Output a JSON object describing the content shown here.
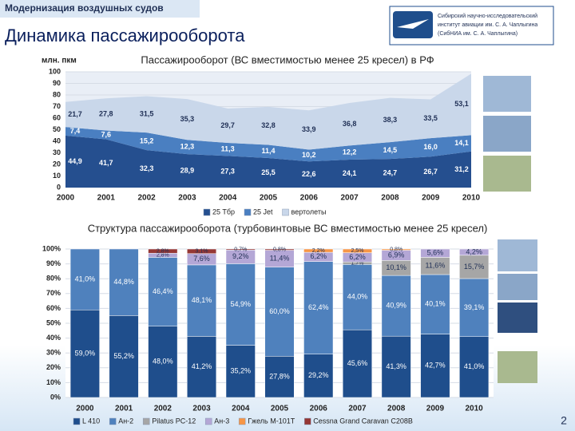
{
  "header": {
    "section": "Модернизация воздушных судов",
    "title": "Динамика пассажирооборота",
    "logo_text": [
      "Сибирский научно-исследовательский",
      "институт авиации им. С. А. Чаплыгина",
      "(СибНИА им. С. А. Чаплыгина)"
    ]
  },
  "page_number": "2",
  "chart_data": [
    {
      "type": "area",
      "title": "Пассажирооборот (ВС вместимостью менее 25 кресел) в РФ",
      "y_label": "млн. пкм",
      "categories": [
        "2000",
        "2001",
        "2002",
        "2003",
        "2004",
        "2005",
        "2006",
        "2007",
        "2008",
        "2009",
        "2010"
      ],
      "ylim": [
        0,
        100
      ],
      "yticks": [
        0,
        10,
        20,
        30,
        40,
        50,
        60,
        70,
        80,
        90,
        100
      ],
      "grid": true,
      "series": [
        {
          "name": "25 Tбр",
          "color": "#254f8f",
          "values": [
            44.9,
            41.7,
            32.3,
            28.9,
            27.3,
            25.5,
            22.6,
            24.1,
            24.7,
            26.7,
            31.2
          ],
          "value_labels": [
            "44,9",
            "41,7",
            "32,3",
            "28,9",
            "27,3",
            "25,5",
            "22,6",
            "24,1",
            "24,7",
            "26,7",
            "31,2"
          ]
        },
        {
          "name": "25 Jet",
          "color": "#4a7fc1",
          "values": [
            7.4,
            7.6,
            15.2,
            12.3,
            11.3,
            11.4,
            10.2,
            12.2,
            14.5,
            16.0,
            14.1
          ],
          "value_labels": [
            "7,4",
            "7,6",
            "15,2",
            "12,3",
            "11,3",
            "11,4",
            "10,2",
            "12,2",
            "14,5",
            "16,0",
            "14,1"
          ]
        },
        {
          "name": "вертолеты",
          "color": "#c9d7ea",
          "values": [
            21.7,
            27.8,
            31.5,
            35.3,
            29.7,
            32.8,
            33.9,
            36.8,
            38.3,
            33.5,
            53.1
          ],
          "value_labels": [
            "21,7",
            "27,8",
            "31,5",
            "35,3",
            "29,7",
            "32,8",
            "33,9",
            "36,8",
            "38,3",
            "33,5",
            "53,1"
          ]
        }
      ]
    },
    {
      "type": "bar",
      "stacked": true,
      "title": "Структура пассажирооборота (турбовинтовые ВС вместимостью менее 25 кресел)",
      "categories": [
        "2000",
        "2001",
        "2002",
        "2003",
        "2004",
        "2005",
        "2006",
        "2007",
        "2008",
        "2009",
        "2010"
      ],
      "ylim": [
        0,
        100
      ],
      "yticks": [
        {
          "value": 0,
          "label": "0%"
        },
        {
          "value": 10,
          "label": "10%"
        },
        {
          "value": 20,
          "label": "20%"
        },
        {
          "value": 30,
          "label": "30%"
        },
        {
          "value": 40,
          "label": "40%"
        },
        {
          "value": 50,
          "label": "50%"
        },
        {
          "value": 60,
          "label": "60%"
        },
        {
          "value": 70,
          "label": "70%"
        },
        {
          "value": 80,
          "label": "80%"
        },
        {
          "value": 90,
          "label": "90%"
        },
        {
          "value": 100,
          "label": "100%"
        }
      ],
      "grid": true,
      "series": [
        {
          "name": "L 410",
          "color": "#1f4e8c",
          "values": [
            59.0,
            55.2,
            48.0,
            41.2,
            35.2,
            27.8,
            29.2,
            45.6,
            41.3,
            42.7,
            41.0
          ],
          "value_labels": [
            "59,0%",
            "55,2%",
            "48,0%",
            "41,2%",
            "35,2%",
            "27,8%",
            "29,2%",
            "45,6%",
            "41,3%",
            "42,7%",
            "41,0%"
          ]
        },
        {
          "name": "Ан-2",
          "color": "#4f81bd",
          "values": [
            41.0,
            44.8,
            46.4,
            48.1,
            54.9,
            60.0,
            62.4,
            44.0,
            40.9,
            40.1,
            39.1
          ],
          "value_labels": [
            "41,0%",
            "44,8%",
            "46,4%",
            "48,1%",
            "54,9%",
            "60,0%",
            "62,4%",
            "44,0%",
            "40,9%",
            "40,1%",
            "39,1%"
          ]
        },
        {
          "name": "Pilatus PC-12",
          "color": "#a6a6a6",
          "values": [
            null,
            null,
            null,
            null,
            null,
            null,
            null,
            1.7,
            10.1,
            11.6,
            15.7
          ],
          "value_labels": [
            null,
            null,
            null,
            null,
            null,
            null,
            null,
            "1,7%",
            "10,1%",
            "11,6%",
            "15,7%"
          ]
        },
        {
          "name": "Ан-3",
          "color": "#b4a7d6",
          "values": [
            null,
            null,
            2.8,
            7.6,
            9.2,
            11.4,
            6.2,
            6.2,
            6.9,
            5.6,
            4.2
          ],
          "value_labels": [
            null,
            null,
            "2,8%",
            "7,6%",
            "9,2%",
            "11,4%",
            "6,2%",
            "6,2%",
            "6,9%",
            "5,6%",
            "4,2%"
          ]
        },
        {
          "name": "Гжель М-101Т",
          "color": "#f79646",
          "values": [
            null,
            null,
            null,
            null,
            null,
            null,
            2.2,
            2.5,
            0.8,
            null,
            null
          ],
          "value_labels": [
            null,
            null,
            null,
            null,
            null,
            null,
            "2,2%",
            "2,5%",
            "0,8%",
            null,
            null
          ]
        },
        {
          "name": "Cessna Grand Caravan C208B",
          "color": "#953735",
          "values": [
            null,
            null,
            2.8,
            3.1,
            0.7,
            0.8,
            null,
            null,
            null,
            null,
            null
          ],
          "value_labels": [
            null,
            null,
            "2,8%",
            "3,1%",
            "0,7%",
            "0,8%",
            null,
            null,
            null,
            null,
            null
          ]
        }
      ]
    }
  ]
}
